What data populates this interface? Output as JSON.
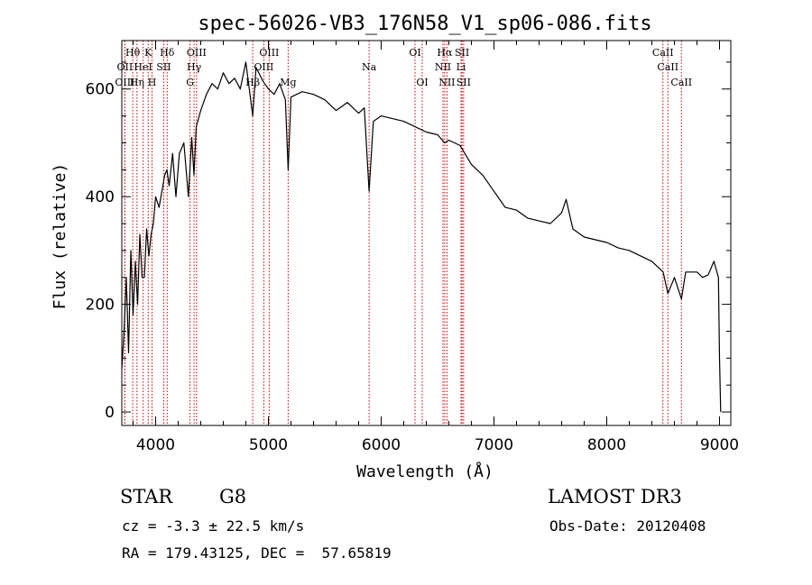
{
  "chart_data": {
    "type": "line",
    "title": "spec-56026-VB3_176N58_V1_sp06-086.fits",
    "xlabel": "Wavelength (Å)",
    "ylabel": "Flux (relative)",
    "xlim": [
      3700,
      9100
    ],
    "ylim": [
      -25,
      690
    ],
    "xticks": [
      4000,
      5000,
      6000,
      7000,
      8000,
      9000
    ],
    "yticks": [
      0,
      200,
      400,
      600
    ],
    "series": [
      {
        "name": "flux",
        "x": [
          3700,
          3720,
          3740,
          3760,
          3780,
          3800,
          3820,
          3840,
          3860,
          3880,
          3900,
          3920,
          3940,
          3960,
          3980,
          4000,
          4030,
          4060,
          4080,
          4100,
          4120,
          4150,
          4180,
          4210,
          4250,
          4290,
          4320,
          4340,
          4360,
          4400,
          4450,
          4500,
          4550,
          4600,
          4650,
          4700,
          4750,
          4800,
          4830,
          4861,
          4890,
          4950,
          5000,
          5050,
          5100,
          5150,
          5175,
          5200,
          5250,
          5300,
          5400,
          5500,
          5600,
          5700,
          5800,
          5850,
          5893,
          5930,
          6000,
          6100,
          6200,
          6300,
          6400,
          6500,
          6563,
          6600,
          6700,
          6800,
          6900,
          7000,
          7100,
          7200,
          7300,
          7400,
          7500,
          7600,
          7640,
          7700,
          7800,
          7900,
          8000,
          8100,
          8200,
          8300,
          8400,
          8500,
          8542,
          8600,
          8662,
          8700,
          8800,
          8850,
          8900,
          8950,
          8990,
          9000,
          9010
        ],
        "values": [
          80,
          150,
          250,
          110,
          300,
          180,
          280,
          200,
          330,
          250,
          250,
          340,
          290,
          330,
          350,
          400,
          380,
          415,
          440,
          450,
          420,
          480,
          400,
          480,
          500,
          400,
          510,
          440,
          530,
          560,
          590,
          610,
          600,
          630,
          610,
          620,
          600,
          650,
          600,
          550,
          640,
          615,
          600,
          590,
          610,
          580,
          450,
          585,
          590,
          595,
          590,
          580,
          560,
          575,
          555,
          565,
          410,
          540,
          550,
          545,
          540,
          530,
          520,
          515,
          500,
          505,
          495,
          460,
          440,
          410,
          380,
          375,
          360,
          355,
          350,
          370,
          395,
          340,
          325,
          320,
          315,
          305,
          300,
          290,
          280,
          260,
          220,
          250,
          210,
          260,
          260,
          250,
          255,
          280,
          250,
          100,
          0
        ]
      }
    ],
    "lines": [
      {
        "label": "Hθ",
        "x": 3797,
        "row": 0
      },
      {
        "label": "K",
        "x": 3934,
        "row": 0
      },
      {
        "label": "Hδ",
        "x": 4102,
        "row": 0
      },
      {
        "label": "OIII",
        "x": 4363,
        "row": 0
      },
      {
        "label": "OIII",
        "x": 5007,
        "row": 0
      },
      {
        "label": "OI",
        "x": 6300,
        "row": 0
      },
      {
        "label": "Hα",
        "x": 6563,
        "row": 0
      },
      {
        "label": "SII",
        "x": 6717,
        "row": 0
      },
      {
        "label": "CaII",
        "x": 8498,
        "row": 0
      },
      {
        "label": "OII",
        "x": 3727,
        "row": 1
      },
      {
        "label": "HeI",
        "x": 3889,
        "row": 1
      },
      {
        "label": "SII",
        "x": 4072,
        "row": 1
      },
      {
        "label": "Hγ",
        "x": 4341,
        "row": 1
      },
      {
        "label": "OIII",
        "x": 4959,
        "row": 1
      },
      {
        "label": "Na",
        "x": 5893,
        "row": 1
      },
      {
        "label": "NII",
        "x": 6548,
        "row": 1
      },
      {
        "label": "Li",
        "x": 6708,
        "row": 1
      },
      {
        "label": "CaII",
        "x": 8542,
        "row": 1
      },
      {
        "label": "OIII",
        "x": 3727,
        "row": 2
      },
      {
        "label": "Hη",
        "x": 3835,
        "row": 2
      },
      {
        "label": "H",
        "x": 3968,
        "row": 2
      },
      {
        "label": "G",
        "x": 4305,
        "row": 2
      },
      {
        "label": "Hβ",
        "x": 4861,
        "row": 2
      },
      {
        "label": "Mg",
        "x": 5175,
        "row": 2
      },
      {
        "label": "OI",
        "x": 6364,
        "row": 2
      },
      {
        "label": "NII",
        "x": 6583,
        "row": 2
      },
      {
        "label": "SII",
        "x": 6731,
        "row": 2
      },
      {
        "label": "CaII",
        "x": 8662,
        "row": 2
      }
    ]
  },
  "info": {
    "class": "STAR",
    "subclass": "G8",
    "survey": "LAMOST DR3",
    "cz": "cz = -3.3 ± 22.5 km/s",
    "obs_date": "Obs-Date: 20120408",
    "coords": "RA = 179.43125, DEC =  57.65819"
  }
}
